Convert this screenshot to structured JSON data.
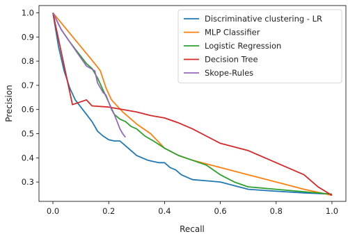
{
  "chart_data": {
    "type": "line",
    "title": "",
    "xlabel": "Recall",
    "ylabel": "Precision",
    "xlim": [
      -0.05,
      1.05
    ],
    "ylim": [
      0.22,
      1.03
    ],
    "xticks": [
      "0.0",
      "0.2",
      "0.4",
      "0.6",
      "0.8",
      "1.0"
    ],
    "yticks": [
      "0.3",
      "0.4",
      "0.5",
      "0.6",
      "0.7",
      "0.8",
      "0.9",
      "1.0"
    ],
    "grid": false,
    "legend_position": "top-right",
    "series": [
      {
        "name": "Discriminative clustering - LR",
        "color": "#1f77b4",
        "x": [
          0.0,
          0.02,
          0.04,
          0.06,
          0.08,
          0.1,
          0.12,
          0.14,
          0.16,
          0.18,
          0.2,
          0.22,
          0.24,
          0.26,
          0.28,
          0.3,
          0.32,
          0.34,
          0.36,
          0.38,
          0.4,
          0.42,
          0.44,
          0.46,
          0.48,
          0.5,
          0.55,
          0.6,
          0.65,
          0.7,
          0.8,
          0.9,
          1.0
        ],
        "y": [
          1.0,
          0.86,
          0.76,
          0.69,
          0.64,
          0.61,
          0.58,
          0.55,
          0.51,
          0.49,
          0.475,
          0.47,
          0.47,
          0.45,
          0.43,
          0.41,
          0.4,
          0.39,
          0.385,
          0.38,
          0.38,
          0.36,
          0.35,
          0.33,
          0.32,
          0.31,
          0.305,
          0.3,
          0.285,
          0.27,
          0.262,
          0.255,
          0.25
        ]
      },
      {
        "name": "MLP Classifier",
        "color": "#ff7f0e",
        "x": [
          0.0,
          0.05,
          0.1,
          0.15,
          0.17,
          0.19,
          0.21,
          0.25,
          0.28,
          0.3,
          0.35,
          0.4,
          0.45,
          0.5,
          0.55,
          0.6,
          0.7,
          0.8,
          0.9,
          1.0
        ],
        "y": [
          1.0,
          0.93,
          0.86,
          0.79,
          0.76,
          0.69,
          0.64,
          0.59,
          0.56,
          0.54,
          0.5,
          0.44,
          0.41,
          0.39,
          0.375,
          0.36,
          0.33,
          0.3,
          0.27,
          0.245
        ]
      },
      {
        "name": "Logistic Regression",
        "color": "#2ca02c",
        "x": [
          0.0,
          0.03,
          0.06,
          0.08,
          0.1,
          0.12,
          0.14,
          0.16,
          0.18,
          0.2,
          0.22,
          0.24,
          0.26,
          0.28,
          0.3,
          0.33,
          0.36,
          0.4,
          0.45,
          0.5,
          0.55,
          0.6,
          0.65,
          0.7,
          0.8,
          0.9,
          1.0
        ],
        "y": [
          1.0,
          0.93,
          0.88,
          0.85,
          0.82,
          0.79,
          0.77,
          0.73,
          0.68,
          0.63,
          0.58,
          0.56,
          0.55,
          0.53,
          0.52,
          0.49,
          0.47,
          0.44,
          0.41,
          0.39,
          0.37,
          0.33,
          0.3,
          0.28,
          0.27,
          0.26,
          0.25
        ]
      },
      {
        "name": "Decision Tree",
        "color": "#d62728",
        "x": [
          0.0,
          0.07,
          0.12,
          0.14,
          0.2,
          0.25,
          0.3,
          0.35,
          0.4,
          0.45,
          0.5,
          0.55,
          0.6,
          0.7,
          0.8,
          0.9,
          0.95,
          1.0
        ],
        "y": [
          1.0,
          0.62,
          0.64,
          0.615,
          0.61,
          0.6,
          0.59,
          0.575,
          0.565,
          0.545,
          0.52,
          0.49,
          0.46,
          0.43,
          0.38,
          0.33,
          0.28,
          0.245
        ]
      },
      {
        "name": "Skope-Rules",
        "color": "#9467bd",
        "x": [
          0.0,
          0.03,
          0.06,
          0.09,
          0.12,
          0.15,
          0.16,
          0.17,
          0.18,
          0.19,
          0.2,
          0.21,
          0.22,
          0.23,
          0.24,
          0.25,
          0.26
        ],
        "y": [
          1.0,
          0.93,
          0.88,
          0.83,
          0.78,
          0.76,
          0.71,
          0.69,
          0.67,
          0.66,
          0.63,
          0.6,
          0.58,
          0.55,
          0.52,
          0.5,
          0.485
        ]
      }
    ]
  }
}
